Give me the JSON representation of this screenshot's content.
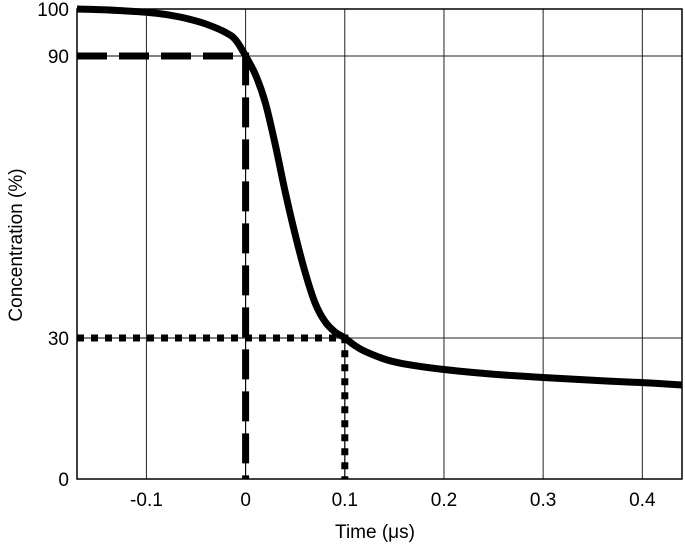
{
  "chart_data": {
    "type": "line",
    "xlabel": "Time (μs)",
    "ylabel": "Concentration (%)",
    "xlim": [
      -0.17,
      0.44
    ],
    "ylim": [
      0,
      100
    ],
    "grid": true,
    "x_ticks": [
      -0.1,
      0,
      0.1,
      0.2,
      0.3,
      0.4
    ],
    "x_tick_labels": [
      "-0.1",
      "0",
      "0.1",
      "0.2",
      "0.3",
      "0.4"
    ],
    "y_ticks": [
      0,
      30,
      90,
      100
    ],
    "y_tick_labels": [
      "0",
      "30",
      "90",
      "100"
    ],
    "series": [
      {
        "style": "solid-thick",
        "x": [
          -0.17,
          -0.14,
          -0.1,
          -0.08,
          -0.06,
          -0.04,
          -0.02,
          -0.01,
          0.0,
          0.01,
          0.02,
          0.03,
          0.04,
          0.05,
          0.06,
          0.07,
          0.08,
          0.09,
          0.1,
          0.11,
          0.12,
          0.14,
          0.16,
          0.2,
          0.25,
          0.3,
          0.35,
          0.4,
          0.44
        ],
        "y": [
          100,
          99.8,
          99.3,
          98.8,
          98,
          96.8,
          95,
          93.4,
          90,
          86,
          80,
          71,
          61,
          52,
          44,
          37.5,
          33.5,
          31.3,
          30,
          28.4,
          27.2,
          25.5,
          24.5,
          23.3,
          22.3,
          21.6,
          21,
          20.5,
          20
        ]
      }
    ],
    "reference_lines": [
      {
        "name": "90-percent-line",
        "style": "dashed",
        "x": [
          -0.17,
          0.0,
          0.0
        ],
        "y": [
          90,
          90,
          0
        ]
      },
      {
        "name": "30-percent-line",
        "style": "dotted",
        "x": [
          -0.17,
          0.1,
          0.1
        ],
        "y": [
          30,
          30,
          0
        ]
      }
    ]
  }
}
